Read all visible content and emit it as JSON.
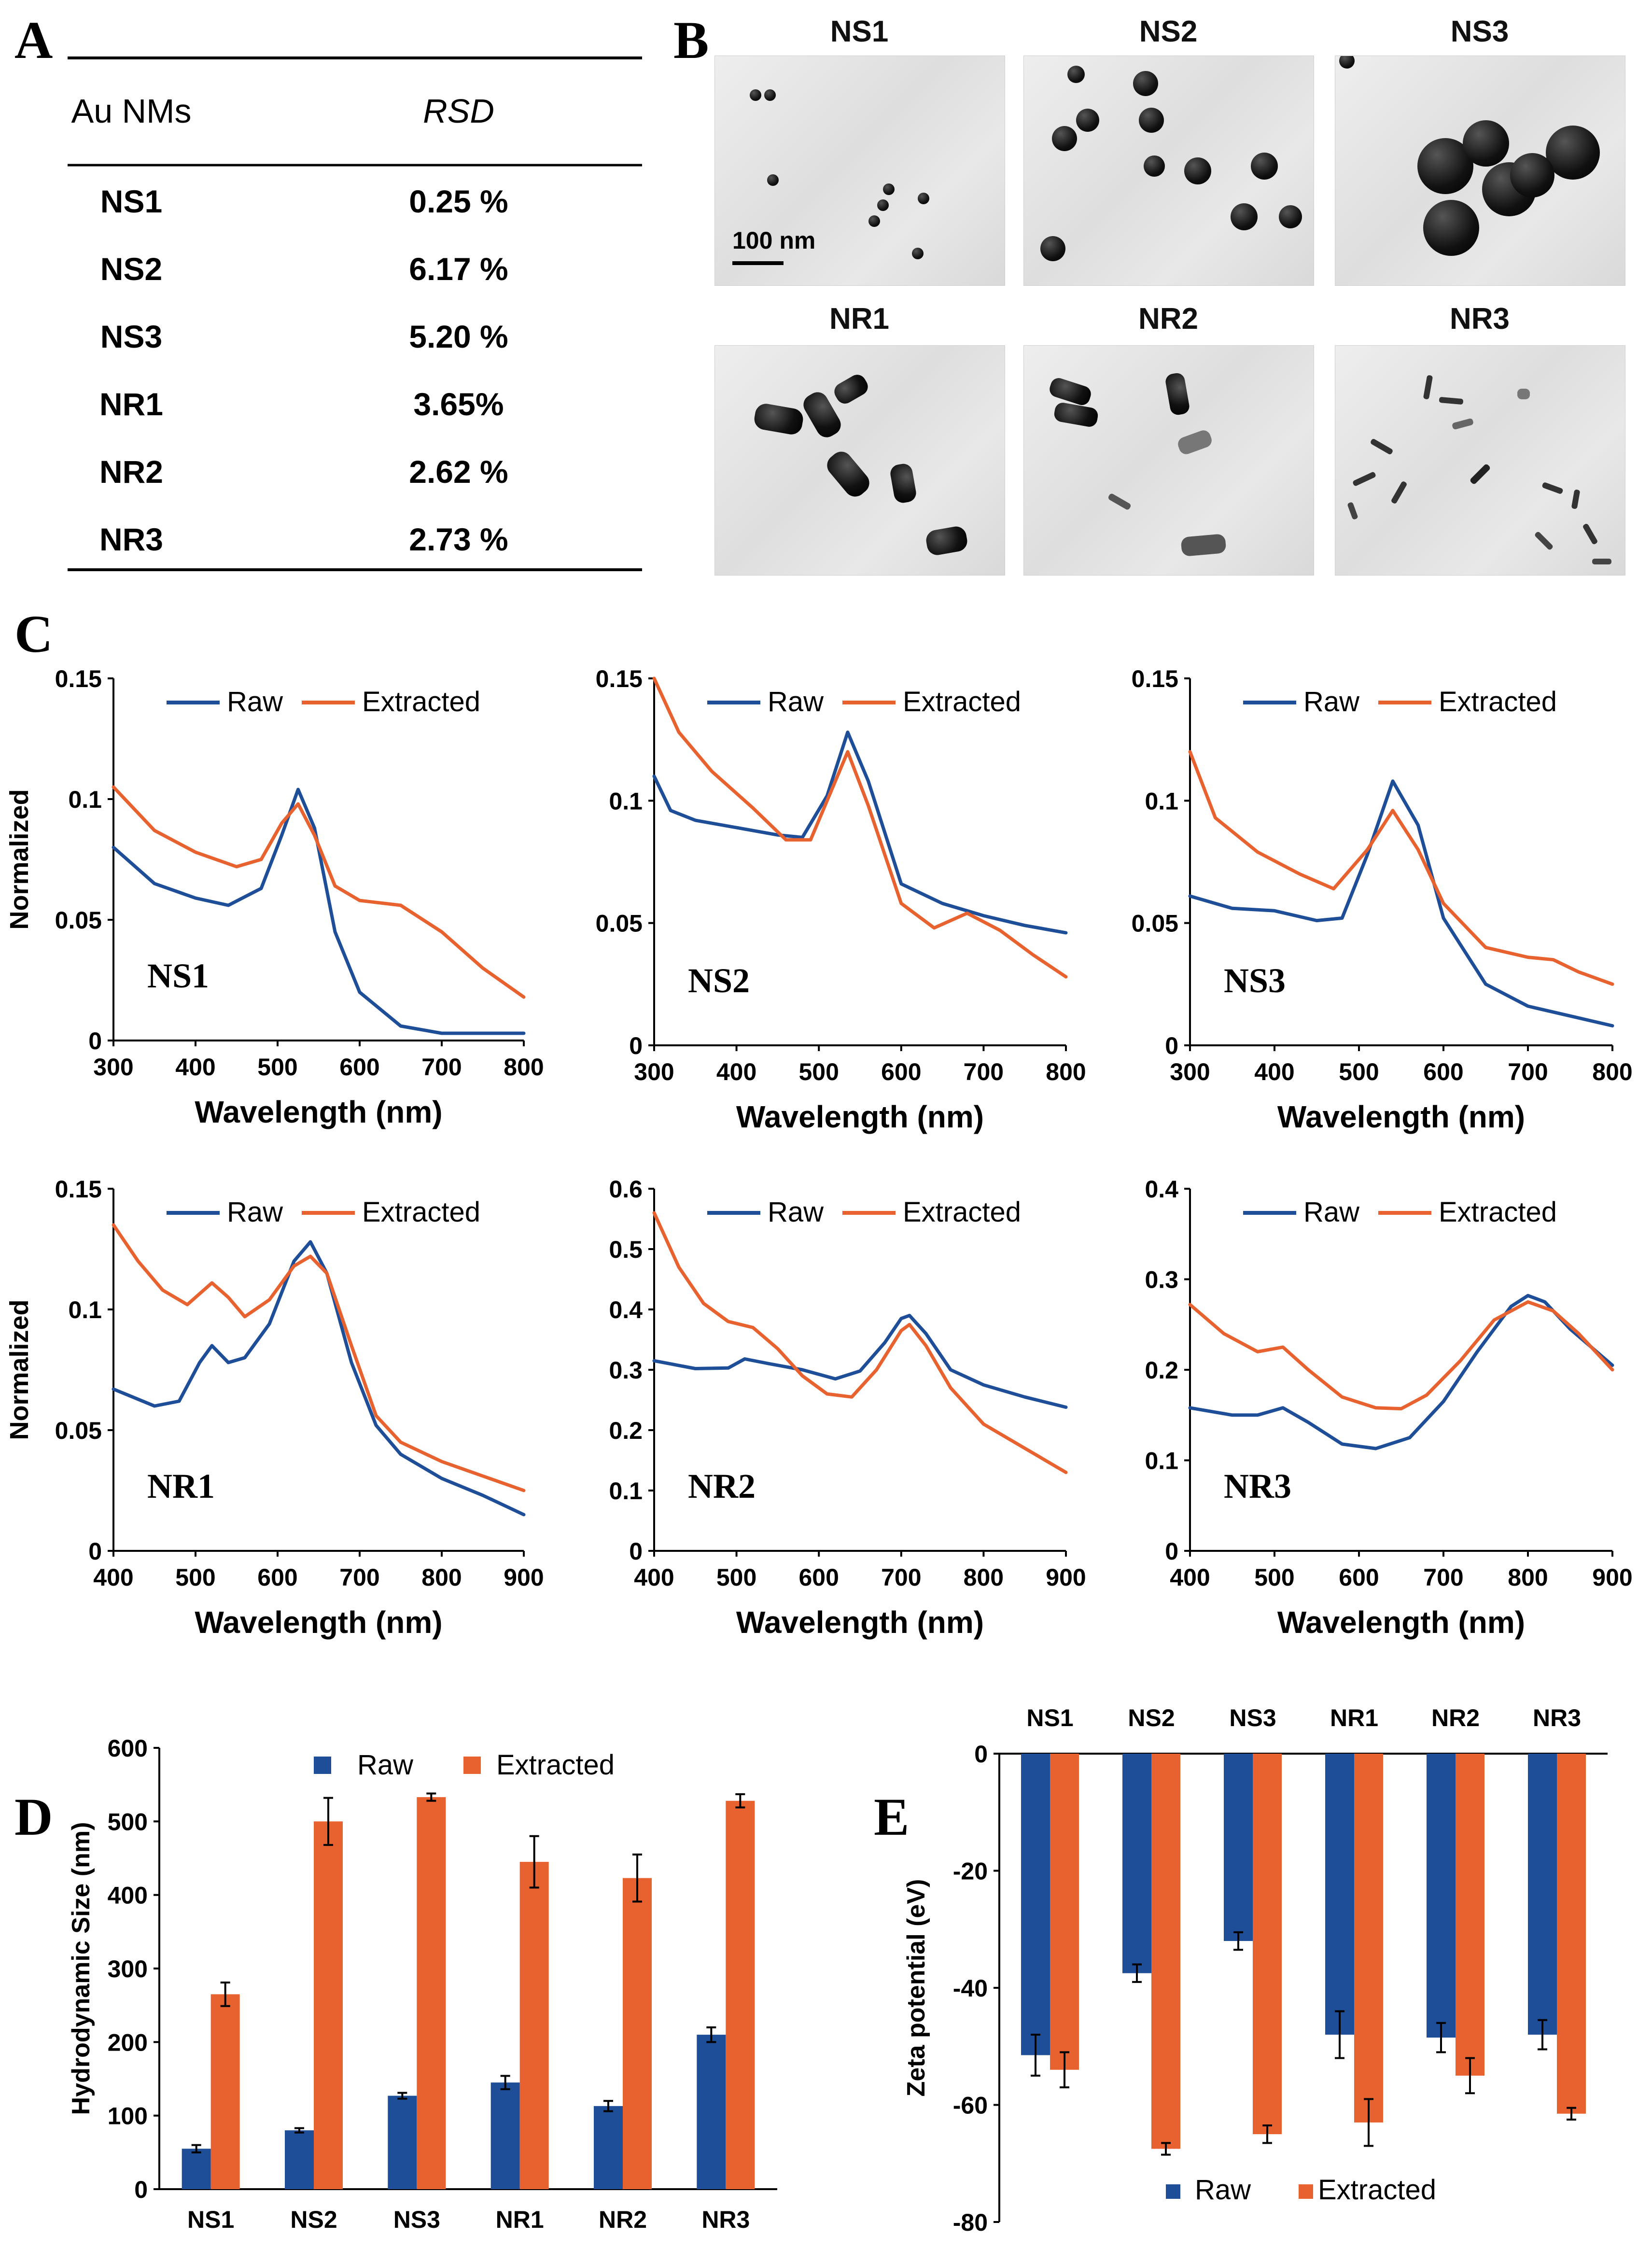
{
  "colors": {
    "raw": "#1f4e99",
    "extracted": "#e8622f",
    "axis": "#000000"
  },
  "panel_labels": {
    "a": "A",
    "b": "B",
    "c": "C",
    "d": "D",
    "e": "E"
  },
  "table": {
    "headers": [
      "Au NMs",
      "RSD"
    ],
    "rows": [
      [
        "NS1",
        "0.25 %"
      ],
      [
        "NS2",
        "6.17 %"
      ],
      [
        "NS3",
        "5.20 %"
      ],
      [
        "NR1",
        "3.65%"
      ],
      [
        "NR2",
        "2.62 %"
      ],
      [
        "NR3",
        "2.73 %"
      ]
    ]
  },
  "tem": {
    "labels": [
      "NS1",
      "NS2",
      "NS3",
      "NR1",
      "NR2",
      "NR3"
    ],
    "scale_bar": "100 nm"
  },
  "chart_data": [
    {
      "type": "line",
      "id": "NS1",
      "panel_label": "NS1",
      "ylabel": "Normalized",
      "xlabel": "Wavelength (nm)",
      "xlim": [
        300,
        800
      ],
      "ylim": [
        0,
        0.15
      ],
      "xticks": [
        300,
        400,
        500,
        600,
        700,
        800
      ],
      "yticks": [
        0,
        0.05,
        0.1,
        0.15
      ],
      "ytick_labels": [
        "0",
        "0.05",
        "0.1",
        "0.15"
      ],
      "legend": [
        "Raw",
        "Extracted"
      ],
      "series": [
        {
          "name": "Raw",
          "x": [
            300,
            350,
            400,
            440,
            480,
            505,
            525,
            545,
            570,
            600,
            650,
            700,
            750,
            800
          ],
          "y": [
            0.08,
            0.065,
            0.059,
            0.056,
            0.063,
            0.085,
            0.104,
            0.088,
            0.045,
            0.02,
            0.006,
            0.003,
            0.003,
            0.003
          ]
        },
        {
          "name": "Extracted",
          "x": [
            300,
            350,
            400,
            450,
            480,
            505,
            525,
            545,
            570,
            600,
            650,
            700,
            750,
            800
          ],
          "y": [
            0.105,
            0.087,
            0.078,
            0.072,
            0.075,
            0.09,
            0.098,
            0.085,
            0.064,
            0.058,
            0.056,
            0.045,
            0.03,
            0.018
          ]
        }
      ]
    },
    {
      "type": "line",
      "id": "NS2",
      "panel_label": "NS2",
      "ylabel": "",
      "xlabel": "Wavelength (nm)",
      "xlim": [
        300,
        800
      ],
      "ylim": [
        0,
        0.15
      ],
      "xticks": [
        300,
        400,
        500,
        600,
        700,
        800
      ],
      "yticks": [
        0,
        0.05,
        0.1,
        0.15
      ],
      "ytick_labels": [
        "0",
        "0.05",
        "0.1",
        "0.15"
      ],
      "legend": [
        "Raw",
        "Extracted"
      ],
      "series": [
        {
          "name": "Raw",
          "x": [
            300,
            320,
            350,
            400,
            450,
            480,
            510,
            535,
            560,
            600,
            650,
            700,
            750,
            800
          ],
          "y": [
            0.11,
            0.096,
            0.092,
            0.089,
            0.086,
            0.085,
            0.102,
            0.128,
            0.108,
            0.066,
            0.058,
            0.053,
            0.049,
            0.046
          ]
        },
        {
          "name": "Extracted",
          "x": [
            300,
            330,
            370,
            420,
            460,
            490,
            515,
            535,
            560,
            600,
            640,
            680,
            720,
            760,
            800
          ],
          "y": [
            0.15,
            0.128,
            0.112,
            0.097,
            0.084,
            0.084,
            0.104,
            0.12,
            0.098,
            0.058,
            0.048,
            0.054,
            0.047,
            0.037,
            0.028
          ]
        }
      ]
    },
    {
      "type": "line",
      "id": "NS3",
      "panel_label": "NS3",
      "ylabel": "",
      "xlabel": "Wavelength (nm)",
      "xlim": [
        300,
        800
      ],
      "ylim": [
        0,
        0.15
      ],
      "xticks": [
        300,
        400,
        500,
        600,
        700,
        800
      ],
      "yticks": [
        0,
        0.05,
        0.1,
        0.15
      ],
      "ytick_labels": [
        "0",
        "0.05",
        "0.1",
        "0.15"
      ],
      "legend": [
        "Raw",
        "Extracted"
      ],
      "series": [
        {
          "name": "Raw",
          "x": [
            300,
            350,
            400,
            450,
            480,
            510,
            540,
            570,
            600,
            650,
            700,
            750,
            800
          ],
          "y": [
            0.061,
            0.056,
            0.055,
            0.051,
            0.052,
            0.078,
            0.108,
            0.09,
            0.052,
            0.025,
            0.016,
            0.012,
            0.008
          ]
        },
        {
          "name": "Extracted",
          "x": [
            300,
            330,
            380,
            430,
            470,
            510,
            540,
            570,
            600,
            650,
            700,
            730,
            760,
            800
          ],
          "y": [
            0.12,
            0.093,
            0.079,
            0.07,
            0.064,
            0.08,
            0.096,
            0.08,
            0.058,
            0.04,
            0.036,
            0.035,
            0.03,
            0.025
          ]
        }
      ]
    },
    {
      "type": "line",
      "id": "NR1",
      "panel_label": "NR1",
      "ylabel": "Normalized",
      "xlabel": "Wavelength (nm)",
      "xlim": [
        400,
        900
      ],
      "ylim": [
        0,
        0.15
      ],
      "xticks": [
        400,
        500,
        600,
        700,
        800,
        900
      ],
      "yticks": [
        0,
        0.05,
        0.1,
        0.15
      ],
      "ytick_labels": [
        "0",
        "0.05",
        "0.1",
        "0.15"
      ],
      "legend": [
        "Raw",
        "Extracted"
      ],
      "series": [
        {
          "name": "Raw",
          "x": [
            400,
            450,
            480,
            505,
            520,
            540,
            560,
            590,
            620,
            640,
            660,
            690,
            720,
            750,
            800,
            850,
            900
          ],
          "y": [
            0.067,
            0.06,
            0.062,
            0.078,
            0.085,
            0.078,
            0.08,
            0.094,
            0.12,
            0.128,
            0.115,
            0.078,
            0.052,
            0.04,
            0.03,
            0.023,
            0.015
          ]
        },
        {
          "name": "Extracted",
          "x": [
            400,
            430,
            460,
            490,
            520,
            540,
            560,
            590,
            620,
            640,
            660,
            690,
            720,
            750,
            800,
            850,
            900
          ],
          "y": [
            0.135,
            0.12,
            0.108,
            0.102,
            0.111,
            0.105,
            0.097,
            0.104,
            0.118,
            0.122,
            0.115,
            0.085,
            0.056,
            0.045,
            0.037,
            0.031,
            0.025
          ]
        }
      ]
    },
    {
      "type": "line",
      "id": "NR2",
      "panel_label": "NR2",
      "ylabel": "",
      "xlabel": "Wavelength (nm)",
      "xlim": [
        400,
        900
      ],
      "ylim": [
        0,
        0.6
      ],
      "xticks": [
        400,
        500,
        600,
        700,
        800,
        900
      ],
      "yticks": [
        0,
        0.1,
        0.2,
        0.3,
        0.4,
        0.5,
        0.6
      ],
      "ytick_labels": [
        "0",
        "0.1",
        "0.2",
        "0.3",
        "0.4",
        "0.5",
        "0.6"
      ],
      "legend": [
        "Raw",
        "Extracted"
      ],
      "series": [
        {
          "name": "Raw",
          "x": [
            400,
            450,
            490,
            510,
            540,
            580,
            620,
            650,
            680,
            700,
            710,
            730,
            760,
            800,
            850,
            900
          ],
          "y": [
            0.315,
            0.302,
            0.303,
            0.318,
            0.31,
            0.3,
            0.285,
            0.298,
            0.345,
            0.385,
            0.39,
            0.36,
            0.3,
            0.275,
            0.255,
            0.238
          ]
        },
        {
          "name": "Extracted",
          "x": [
            400,
            430,
            460,
            490,
            520,
            550,
            580,
            610,
            640,
            670,
            700,
            710,
            730,
            760,
            800,
            850,
            900
          ],
          "y": [
            0.56,
            0.47,
            0.41,
            0.38,
            0.37,
            0.335,
            0.29,
            0.26,
            0.255,
            0.3,
            0.365,
            0.375,
            0.34,
            0.27,
            0.21,
            0.17,
            0.13
          ]
        }
      ]
    },
    {
      "type": "line",
      "id": "NR3",
      "panel_label": "NR3",
      "ylabel": "",
      "xlabel": "Wavelength (nm)",
      "xlim": [
        400,
        900
      ],
      "ylim": [
        0,
        0.4
      ],
      "xticks": [
        400,
        500,
        600,
        700,
        800,
        900
      ],
      "yticks": [
        0,
        0.1,
        0.2,
        0.3,
        0.4
      ],
      "ytick_labels": [
        "0",
        "0.1",
        "0.2",
        "0.3",
        "0.4"
      ],
      "legend": [
        "Raw",
        "Extracted"
      ],
      "series": [
        {
          "name": "Raw",
          "x": [
            400,
            450,
            480,
            510,
            540,
            580,
            620,
            660,
            700,
            740,
            780,
            800,
            820,
            850,
            900
          ],
          "y": [
            0.158,
            0.15,
            0.15,
            0.158,
            0.142,
            0.118,
            0.113,
            0.125,
            0.165,
            0.22,
            0.27,
            0.282,
            0.275,
            0.245,
            0.205
          ]
        },
        {
          "name": "Extracted",
          "x": [
            400,
            440,
            480,
            510,
            540,
            580,
            620,
            650,
            680,
            720,
            760,
            800,
            830,
            860,
            900
          ],
          "y": [
            0.272,
            0.24,
            0.22,
            0.225,
            0.2,
            0.17,
            0.158,
            0.157,
            0.172,
            0.21,
            0.255,
            0.275,
            0.265,
            0.24,
            0.2
          ]
        }
      ]
    },
    {
      "type": "bar",
      "id": "D",
      "ylabel": "Hydrodynamic Size (nm)",
      "xlabel": "",
      "categories": [
        "NS1",
        "NS2",
        "NS3",
        "NR1",
        "NR2",
        "NR3"
      ],
      "ylim": [
        0,
        600
      ],
      "yticks": [
        0,
        100,
        200,
        300,
        400,
        500,
        600
      ],
      "legend": [
        "Raw",
        "Extracted"
      ],
      "series": [
        {
          "name": "Raw",
          "values": [
            55,
            80,
            127,
            145,
            113,
            210
          ],
          "errors": [
            5,
            3,
            4,
            9,
            7,
            10
          ]
        },
        {
          "name": "Extracted",
          "values": [
            265,
            500,
            533,
            445,
            423,
            528
          ],
          "errors": [
            16,
            32,
            5,
            35,
            32,
            9
          ]
        }
      ]
    },
    {
      "type": "bar",
      "id": "E",
      "ylabel": "Zeta potential (eV)",
      "xlabel": "",
      "categories": [
        "NS1",
        "NS2",
        "NS3",
        "NR1",
        "NR2",
        "NR3"
      ],
      "ylim": [
        -80,
        0
      ],
      "yticks": [
        0,
        -20,
        -40,
        -60,
        -80
      ],
      "legend": [
        "Raw",
        "Extracted"
      ],
      "series": [
        {
          "name": "Raw",
          "values": [
            -51.5,
            -37.5,
            -32,
            -48,
            -48.5,
            -48
          ],
          "errors": [
            3.5,
            1.5,
            1.5,
            4,
            2.5,
            2.5
          ]
        },
        {
          "name": "Extracted",
          "values": [
            -54,
            -67.5,
            -65,
            -63,
            -55,
            -61.5
          ],
          "errors": [
            3,
            1,
            1.5,
            4,
            3,
            1
          ]
        }
      ]
    }
  ]
}
